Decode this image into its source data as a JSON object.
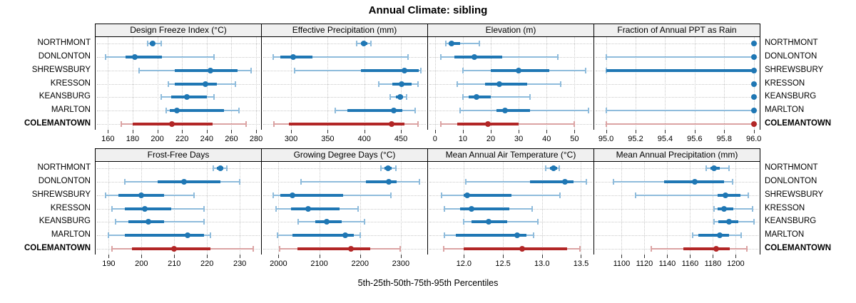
{
  "title": "Annual Climate: sibling",
  "caption": "5th-25th-50th-75th-95th Percentiles",
  "locations": [
    "NORTHMONT",
    "DONLONTON",
    "SHREWSBURY",
    "KRESSON",
    "KEANSBURG",
    "MARLTON",
    "COLEMANTOWN"
  ],
  "highlight_location": "COLEMANTOWN",
  "colors": {
    "blue": "#1f77b4",
    "blue_light": "#8fbcdc",
    "red": "#b22626",
    "red_light": "#dba3a3",
    "strip_bg": "#f0f0f0",
    "grid": "#c9c9c9",
    "border": "#000000",
    "tick": "#333333"
  },
  "chart_data": {
    "type": "scatter",
    "subtype": "dot-whisker percentile plot (5th-25th-50th-75th-95th)",
    "layout_rows": 2,
    "layout_cols": 4,
    "grid": "dotted, both axes",
    "legend_position": "none",
    "categories": [
      "NORTHMONT",
      "DONLONTON",
      "SHREWSBURY",
      "KRESSON",
      "KEANSBURG",
      "MARLTON",
      "COLEMANTOWN"
    ],
    "panels": [
      {
        "title": "Design Freeze Index (°C)",
        "xlim": [
          150,
          284
        ],
        "ticks": [
          160,
          180,
          200,
          220,
          240,
          260,
          280
        ],
        "tick_labels": [
          "160",
          "180",
          "200",
          "220",
          "240",
          "260",
          "280"
        ],
        "series": [
          {
            "name": "NORTHMONT",
            "values": [
              192,
              194,
              196,
              198,
              203
            ]
          },
          {
            "name": "DONLONTON",
            "values": [
              158,
              174,
              182,
              204,
              246
            ]
          },
          {
            "name": "SHREWSBURY",
            "values": [
              185,
              214,
              243,
              265,
              276
            ]
          },
          {
            "name": "KRESSON",
            "values": [
              209,
              214,
              239,
              248,
              263
            ]
          },
          {
            "name": "KEANSBURG",
            "values": [
              203,
              211,
              224,
              240,
              246
            ]
          },
          {
            "name": "MARLTON",
            "values": [
              207,
              210,
              216,
              254,
              266
            ]
          },
          {
            "name": "COLEMANTOWN",
            "values": [
              171,
              180,
              212,
              245,
              272
            ]
          }
        ]
      },
      {
        "title": "Effective Precipitation (mm)",
        "xlim": [
          260,
          486
        ],
        "ticks": [
          300,
          350,
          400,
          450
        ],
        "tick_labels": [
          "300",
          "350",
          "400",
          "450"
        ],
        "series": [
          {
            "name": "NORTHMONT",
            "values": [
              390,
              395,
              399,
              404,
              409
            ]
          },
          {
            "name": "DONLONTON",
            "values": [
              276,
              285,
              303,
              329,
              460
            ]
          },
          {
            "name": "SHREWSBURY",
            "values": [
              305,
              395,
              455,
              474,
              477
            ]
          },
          {
            "name": "KRESSON",
            "values": [
              420,
              438,
              451,
              465,
              473
            ]
          },
          {
            "name": "KEANSBURG",
            "values": [
              435,
              443,
              449,
              453,
              458
            ]
          },
          {
            "name": "MARLTON",
            "values": [
              360,
              377,
              440,
              452,
              469
            ]
          },
          {
            "name": "COLEMANTOWN",
            "values": [
              277,
              297,
              437,
              455,
              473
            ]
          }
        ]
      },
      {
        "title": "Elevation (m)",
        "xlim": [
          -2.5,
          56.8
        ],
        "ticks": [
          0,
          10,
          20,
          30,
          40,
          50
        ],
        "tick_labels": [
          "0",
          "10",
          "20",
          "30",
          "40",
          "50"
        ],
        "series": [
          {
            "name": "NORTHMONT",
            "values": [
              4,
              5,
              6,
              9,
              16
            ]
          },
          {
            "name": "DONLONTON",
            "values": [
              2,
              7,
              14,
              24,
              44
            ]
          },
          {
            "name": "SHREWSBURY",
            "values": [
              10,
              20,
              30,
              41,
              54
            ]
          },
          {
            "name": "KRESSON",
            "values": [
              8,
              18,
              23,
              33,
              45
            ]
          },
          {
            "name": "KEANSBURG",
            "values": [
              10,
              12,
              15,
              20,
              34
            ]
          },
          {
            "name": "MARLTON",
            "values": [
              9,
              22,
              25,
              34,
              55
            ]
          },
          {
            "name": "COLEMANTOWN",
            "values": [
              2,
              8,
              19,
              30,
              50
            ]
          }
        ]
      },
      {
        "title": "Fraction of Annual PPT as Rain",
        "xlim": [
          94.92,
          96.04
        ],
        "ticks": [
          95.0,
          95.2,
          95.4,
          95.6,
          95.8,
          96.0
        ],
        "tick_labels": [
          "95.0",
          "95.2",
          "95.4",
          "95.6",
          "95.8",
          "96.0"
        ],
        "series": [
          {
            "name": "NORTHMONT",
            "values": [
              96,
              96,
              96,
              96,
              96
            ]
          },
          {
            "name": "DONLONTON",
            "values": [
              95,
              96,
              96,
              96,
              96
            ]
          },
          {
            "name": "SHREWSBURY",
            "values": [
              95,
              95,
              96,
              96,
              96
            ]
          },
          {
            "name": "KRESSON",
            "values": [
              96,
              96,
              96,
              96,
              96
            ]
          },
          {
            "name": "KEANSBURG",
            "values": [
              96,
              96,
              96,
              96,
              96
            ]
          },
          {
            "name": "MARLTON",
            "values": [
              95,
              96,
              96,
              96,
              96
            ]
          },
          {
            "name": "COLEMANTOWN",
            "values": [
              95,
              96,
              96,
              96,
              96
            ]
          }
        ]
      },
      {
        "title": "Frost-Free Days",
        "xlim": [
          186,
          236.5
        ],
        "ticks": [
          190,
          200,
          210,
          220,
          230
        ],
        "tick_labels": [
          "190",
          "200",
          "210",
          "220",
          "230"
        ],
        "series": [
          {
            "name": "NORTHMONT",
            "values": [
              222,
              223,
              224,
              225,
              226
            ]
          },
          {
            "name": "DONLONTON",
            "values": [
              195,
              205,
              213,
              224,
              230
            ]
          },
          {
            "name": "SHREWSBURY",
            "values": [
              189,
              193,
              200,
              207,
              216
            ]
          },
          {
            "name": "KRESSON",
            "values": [
              191,
              195,
              201,
              209,
              219
            ]
          },
          {
            "name": "KEANSBURG",
            "values": [
              192,
              196,
              202,
              207,
              219
            ]
          },
          {
            "name": "MARLTON",
            "values": [
              190,
              195,
              214,
              219,
              221
            ]
          },
          {
            "name": "COLEMANTOWN",
            "values": [
              191,
              197,
              210,
              221,
              234
            ]
          }
        ]
      },
      {
        "title": "Growing Degree Days (°C)",
        "xlim": [
          1959,
          2365
        ],
        "ticks": [
          2000,
          2100,
          2200,
          2300
        ],
        "tick_labels": [
          "2000",
          "2100",
          "2200",
          "2300"
        ],
        "series": [
          {
            "name": "NORTHMONT",
            "values": [
              2252,
              2260,
              2268,
              2277,
              2288
            ]
          },
          {
            "name": "DONLONTON",
            "values": [
              2056,
              2215,
              2270,
              2290,
              2346
            ]
          },
          {
            "name": "SHREWSBURY",
            "values": [
              1987,
              2005,
              2035,
              2158,
              2275
            ]
          },
          {
            "name": "KRESSON",
            "values": [
              1994,
              2030,
              2072,
              2150,
              2196
            ]
          },
          {
            "name": "KEANSBURG",
            "values": [
              2049,
              2090,
              2118,
              2155,
              2211
            ]
          },
          {
            "name": "MARLTON",
            "values": [
              1998,
              2035,
              2164,
              2185,
              2200
            ]
          },
          {
            "name": "COLEMANTOWN",
            "values": [
              2002,
              2046,
              2178,
              2225,
              2298
            ]
          }
        ]
      },
      {
        "title": "Mean Annual Air Temperature (°C)",
        "xlim": [
          11.54,
          13.66
        ],
        "ticks": [
          12.0,
          12.5,
          13.0,
          13.5
        ],
        "tick_labels": [
          "12.0",
          "12.5",
          "13.0",
          "13.5"
        ],
        "series": [
          {
            "name": "NORTHMONT",
            "values": [
              13.05,
              13.1,
              13.15,
              13.19,
              13.22
            ]
          },
          {
            "name": "DONLONTON",
            "values": [
              12.02,
              12.85,
              13.29,
              13.4,
              13.57
            ]
          },
          {
            "name": "SHREWSBURY",
            "values": [
              11.71,
              12.0,
              12.04,
              12.61,
              13.23
            ]
          },
          {
            "name": "KRESSON",
            "values": [
              11.75,
              11.95,
              12.1,
              12.58,
              12.87
            ]
          },
          {
            "name": "KEANSBURG",
            "values": [
              12.0,
              12.1,
              12.32,
              12.55,
              12.95
            ]
          },
          {
            "name": "MARLTON",
            "values": [
              11.75,
              11.9,
              12.68,
              12.8,
              12.89
            ]
          },
          {
            "name": "COLEMANTOWN",
            "values": [
              11.74,
              12.0,
              12.75,
              13.32,
              13.49
            ]
          }
        ]
      },
      {
        "title": "Mean Annual Precipitation (mm)",
        "xlim": [
          1076,
          1221
        ],
        "ticks": [
          1100,
          1120,
          1140,
          1160,
          1180,
          1200
        ],
        "tick_labels": [
          "1100",
          "1120",
          "1140",
          "1160",
          "1180",
          "1200"
        ],
        "series": [
          {
            "name": "NORTHMONT",
            "values": [
              1174,
              1178,
              1181,
              1186,
              1194
            ]
          },
          {
            "name": "DONLONTON",
            "values": [
              1093,
              1137,
              1164,
              1190,
              1197
            ]
          },
          {
            "name": "SHREWSBURY",
            "values": [
              1112,
              1184,
              1191,
              1204,
              1211
            ]
          },
          {
            "name": "KRESSON",
            "values": [
              1181,
              1184,
              1190,
              1198,
              1215
            ]
          },
          {
            "name": "KEANSBURG",
            "values": [
              1181,
              1185,
              1194,
              1202,
              1216
            ]
          },
          {
            "name": "MARLTON",
            "values": [
              1162,
              1167,
              1186,
              1194,
              1205
            ]
          },
          {
            "name": "COLEMANTOWN",
            "values": [
              1126,
              1154,
              1183,
              1195,
              1210
            ]
          }
        ]
      }
    ]
  }
}
